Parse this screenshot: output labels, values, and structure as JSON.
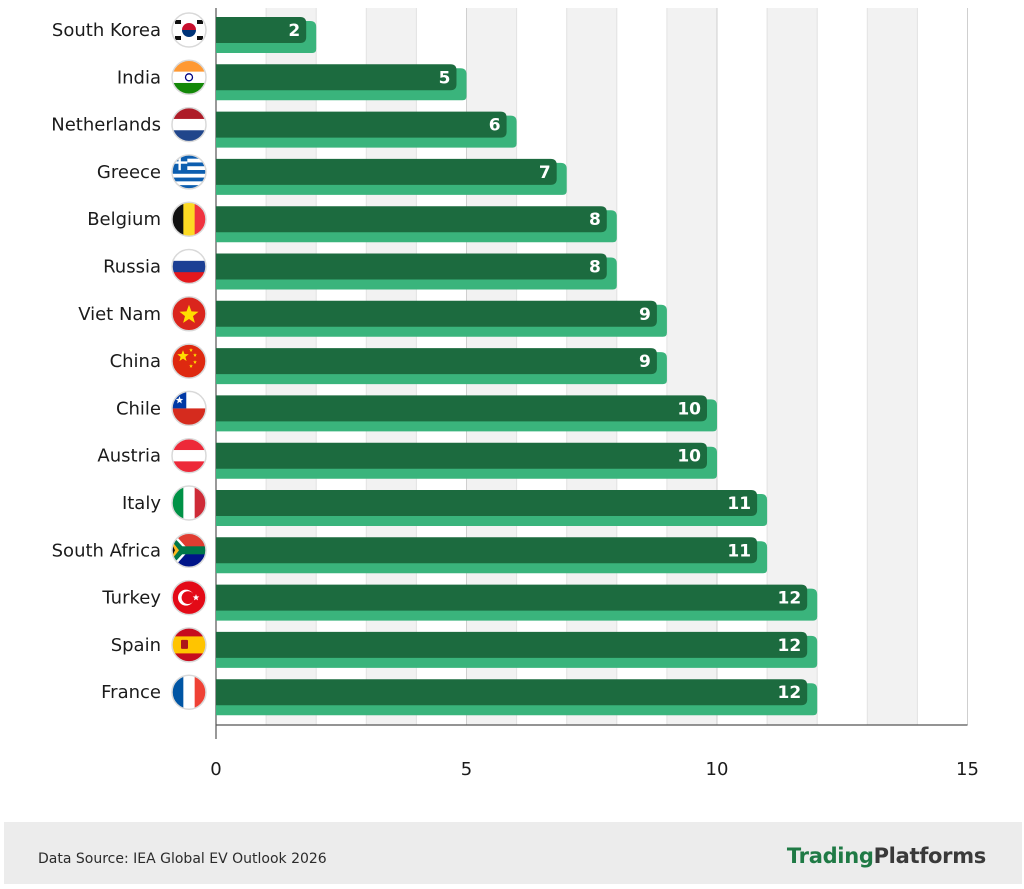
{
  "chart_data": {
    "type": "bar",
    "orientation": "horizontal",
    "categories": [
      "South Korea",
      "India",
      "Netherlands",
      "Greece",
      "Belgium",
      "Russia",
      "Viet Nam",
      "China",
      "Chile",
      "Austria",
      "Italy",
      "South Africa",
      "Turkey",
      "Spain",
      "France"
    ],
    "values": [
      2,
      5,
      6,
      7,
      8,
      8,
      9,
      9,
      10,
      10,
      11,
      11,
      12,
      12,
      12
    ],
    "xlim": [
      0,
      15
    ],
    "xticks": [
      0,
      5,
      10,
      15
    ],
    "grid": true,
    "legend": "none",
    "colors": {
      "bar": "#1c6b3f",
      "bar_shadow": "#3ab47c",
      "grid": "#d6d6d6",
      "stripe": "#f2f2f2"
    }
  },
  "flags": [
    {
      "country": "South Korea",
      "icon": "south-korea-flag-icon"
    },
    {
      "country": "India",
      "icon": "india-flag-icon"
    },
    {
      "country": "Netherlands",
      "icon": "netherlands-flag-icon"
    },
    {
      "country": "Greece",
      "icon": "greece-flag-icon"
    },
    {
      "country": "Belgium",
      "icon": "belgium-flag-icon"
    },
    {
      "country": "Russia",
      "icon": "russia-flag-icon"
    },
    {
      "country": "Viet Nam",
      "icon": "vietnam-flag-icon"
    },
    {
      "country": "China",
      "icon": "china-flag-icon"
    },
    {
      "country": "Chile",
      "icon": "chile-flag-icon"
    },
    {
      "country": "Austria",
      "icon": "austria-flag-icon"
    },
    {
      "country": "Italy",
      "icon": "italy-flag-icon"
    },
    {
      "country": "South Africa",
      "icon": "south-africa-flag-icon"
    },
    {
      "country": "Turkey",
      "icon": "turkey-flag-icon"
    },
    {
      "country": "Spain",
      "icon": "spain-flag-icon"
    },
    {
      "country": "France",
      "icon": "france-flag-icon"
    }
  ],
  "footer": {
    "source": "Data Source: IEA Global EV Outlook 2026",
    "brand_part1": "Trading",
    "brand_part2": "Platforms"
  }
}
